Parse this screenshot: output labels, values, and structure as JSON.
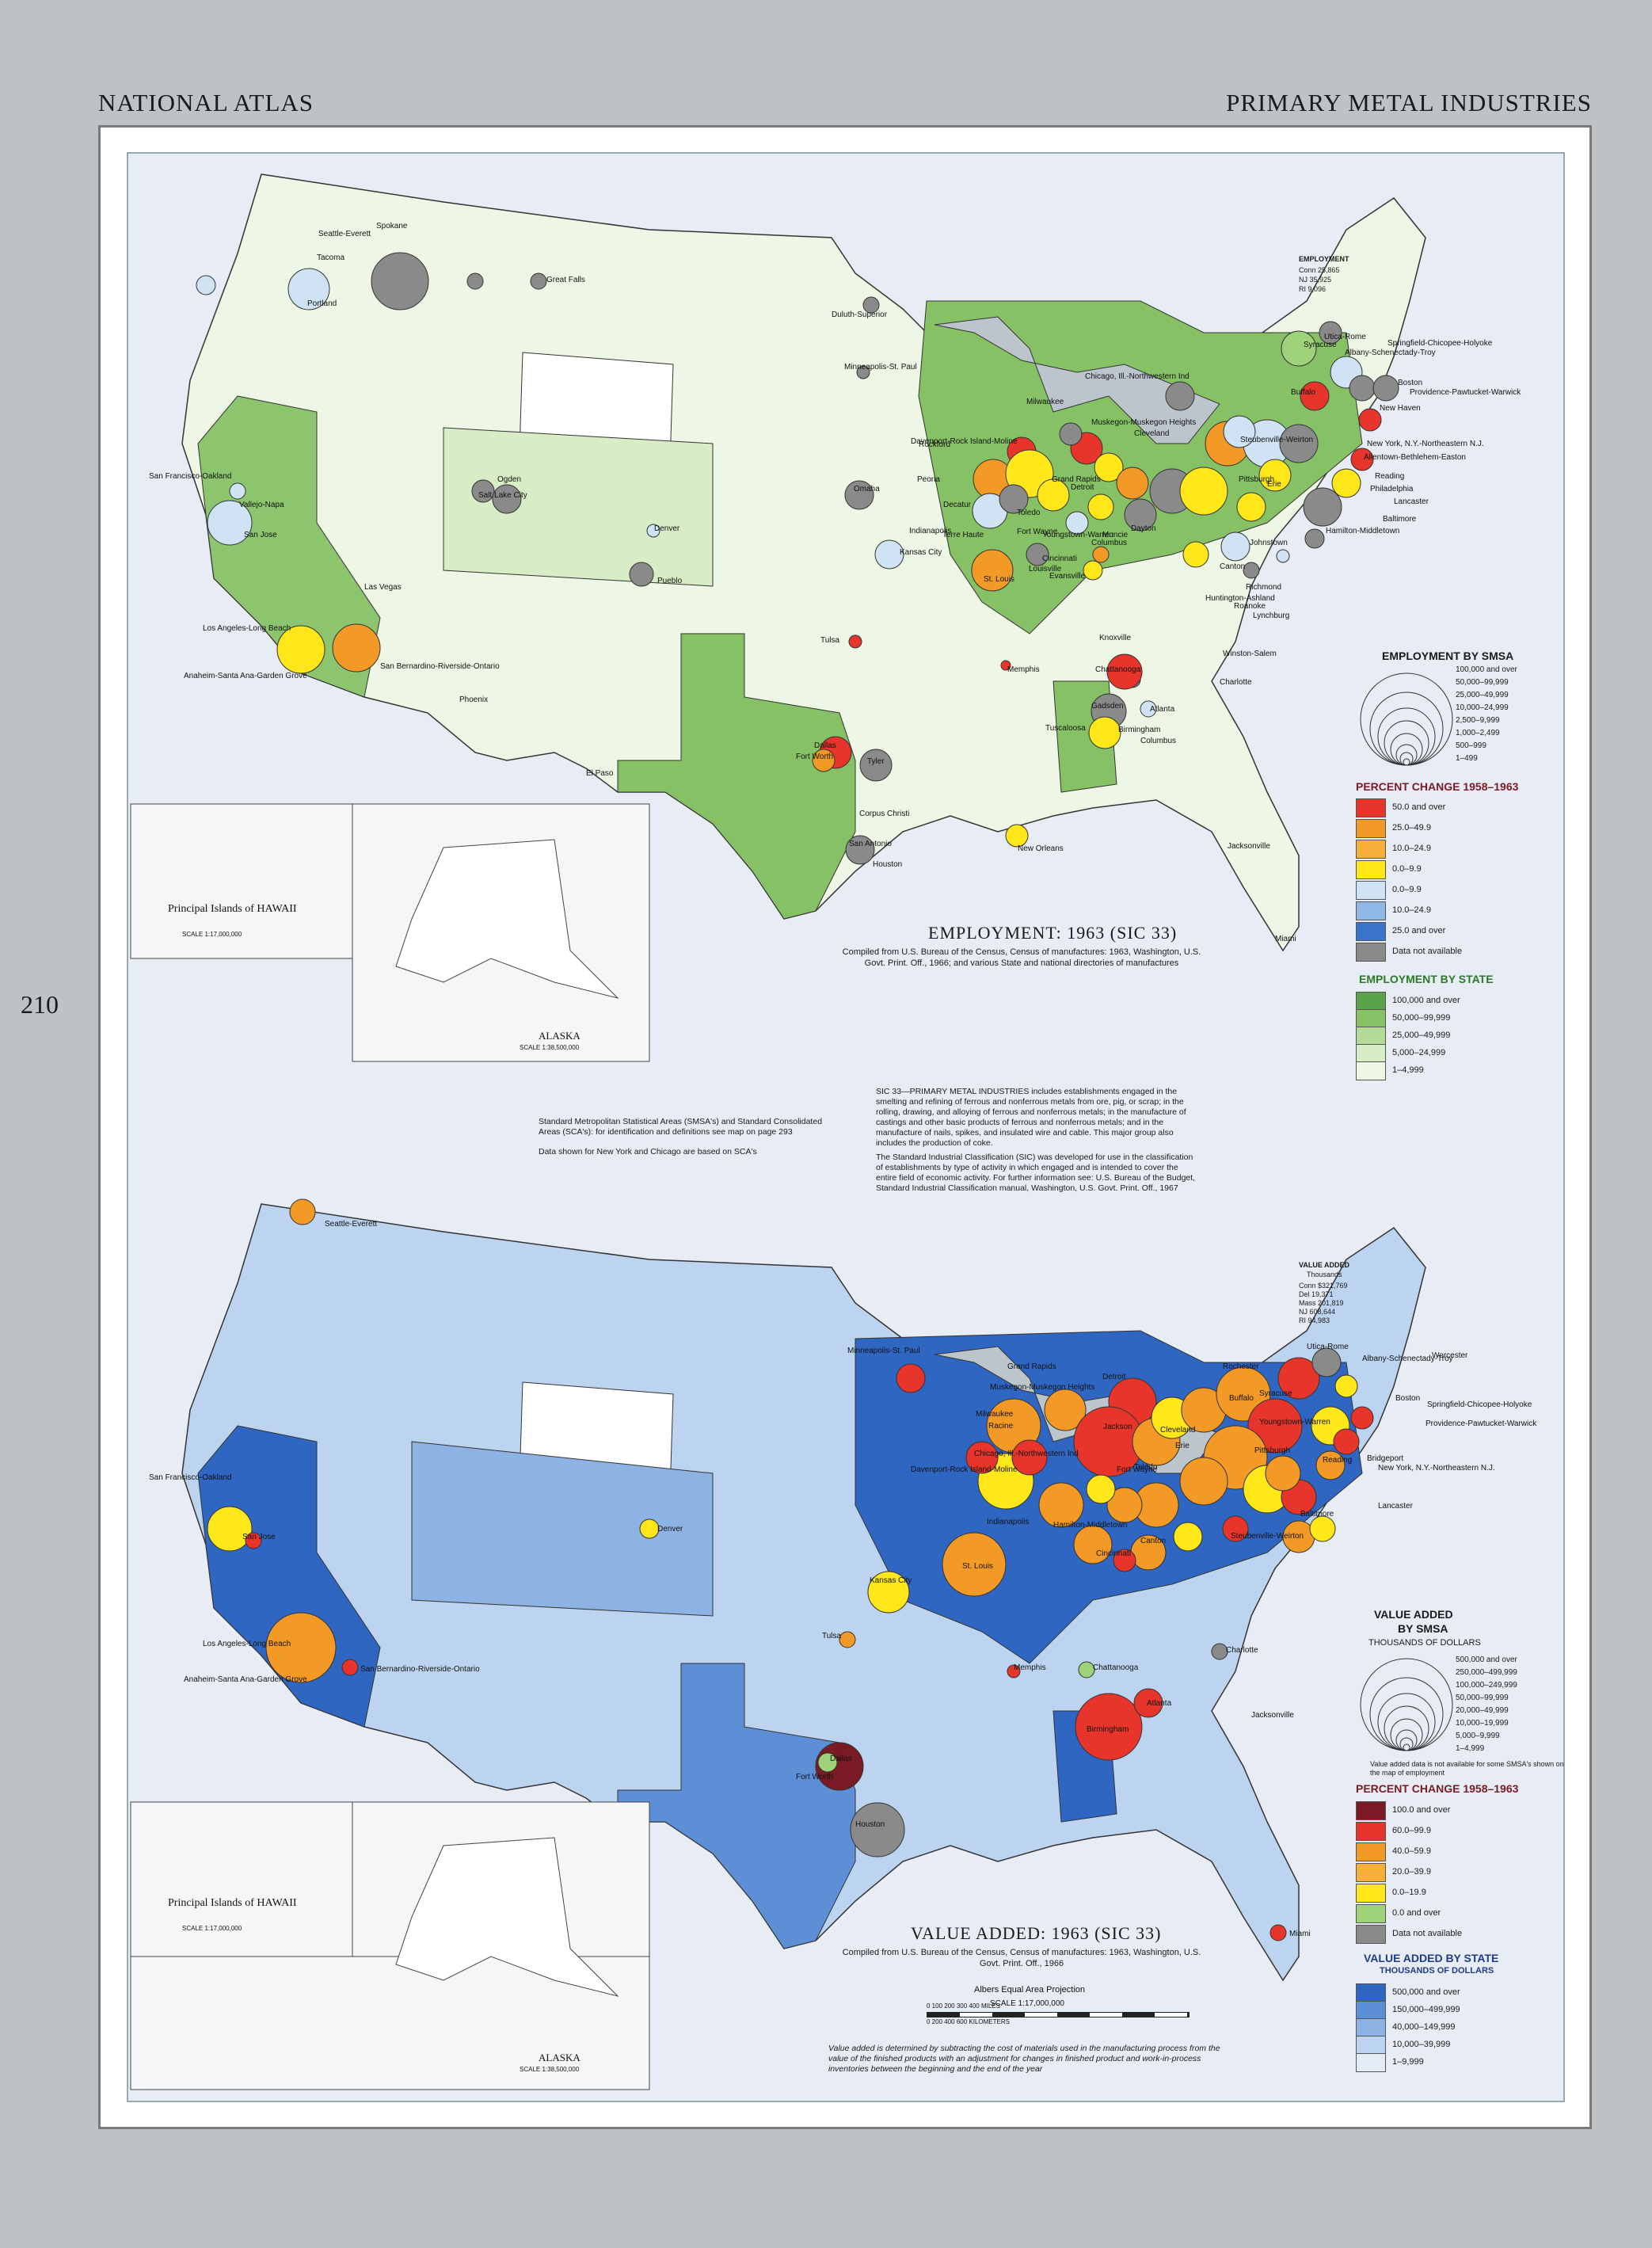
{
  "header": {
    "left": "NATIONAL ATLAS",
    "right": "PRIMARY METAL INDUSTRIES",
    "page_number": "210"
  },
  "colors": {
    "red": "#e8352b",
    "orange": "#f39a26",
    "orange2": "#f6b03a",
    "yellow": "#ffe71a",
    "lblue": "#cfe3f5",
    "mblue": "#8fb8e6",
    "dblue": "#3a74c8",
    "gray": "#8a8a8a",
    "maroon": "#7a1a24",
    "green": "#9fd37a"
  },
  "map1": {
    "title": "EMPLOYMENT: 1963 (SIC 33)",
    "source": "Compiled from U.S. Bureau of the Census, Census of manufactures: 1963, Washington, U.S. Govt. Print. Off., 1966; and various State and national directories of manufactures",
    "employment_box": {
      "title": "EMPLOYMENT",
      "rows": [
        [
          "Conn",
          "25,865"
        ],
        [
          "NJ",
          "35,925"
        ],
        [
          "RI",
          "9,096"
        ]
      ]
    },
    "cities": [
      "Seattle-Everett",
      "Tacoma",
      "Spokane",
      "Portland",
      "Great Falls",
      "Duluth-Superior",
      "Minneapolis-St. Paul",
      "San Francisco-Oakland",
      "Vallejo-Napa",
      "San Jose",
      "Ogden",
      "Salt Lake City",
      "Denver",
      "Pueblo",
      "Omaha",
      "Kansas City",
      "Las Vegas",
      "Los Angeles-Long Beach",
      "San Bernardino-Riverside-Ontario",
      "Anaheim-Santa Ana-Garden Grove",
      "Phoenix",
      "Tulsa",
      "El Paso",
      "Fort Worth",
      "Dallas",
      "Tyler",
      "San Antonio",
      "Houston",
      "Corpus Christi",
      "New Orleans",
      "Memphis",
      "Chattanooga",
      "Knoxville",
      "Gadsden",
      "Birmingham",
      "Tuscaloosa",
      "Atlanta",
      "Columbus",
      "Jacksonville",
      "Miami",
      "Charlotte",
      "Winston-Salem",
      "Lynchburg",
      "Roanoke",
      "Richmond",
      "Huntington-Ashland",
      "St. Louis",
      "Louisville",
      "Evansville",
      "Terre Haute",
      "Indianapolis",
      "Decatur",
      "Peoria",
      "Davenport-Rock Island-Moline",
      "Rockford",
      "Milwaukee",
      "Chicago, Ill.-Northwestern Ind",
      "Muskegon-Muskegon Heights",
      "Grand Rapids",
      "Detroit",
      "Toledo",
      "Fort Wayne",
      "Muncie",
      "Dayton",
      "Columbus",
      "Cleveland",
      "Canton",
      "Pittsburgh",
      "Johnstown",
      "Erie",
      "Buffalo",
      "Syracuse",
      "Utica-Rome",
      "Albany-Schenectady-Troy",
      "Springfield-Chicopee-Holyoke",
      "Boston",
      "Providence-Pawtucket-Warwick",
      "New Haven",
      "New York, N.Y.-Northeastern N.J.",
      "Allentown-Bethlehem-Easton",
      "Reading",
      "Philadelphia",
      "Lancaster",
      "Baltimore",
      "Hamilton-Middletown",
      "Cincinnati",
      "Youngstown-Warren",
      "Steubenville-Weirton"
    ],
    "legend_smsa": {
      "title": "EMPLOYMENT BY SMSA",
      "items": [
        "100,000 and over",
        "50,000–99,999",
        "25,000–49,999",
        "10,000–24,999",
        "2,500–9,999",
        "1,000–2,499",
        "500–999",
        "1–499"
      ]
    },
    "legend_change": {
      "title": "PERCENT CHANGE 1958–1963",
      "items": [
        {
          "color": "#e8352b",
          "label": "50.0 and over"
        },
        {
          "color": "#f39a26",
          "label": "25.0–49.9"
        },
        {
          "color": "#f6b03a",
          "label": "10.0–24.9"
        },
        {
          "color": "#ffe71a",
          "label": "0.0–9.9"
        },
        {
          "color": "#cfe3f5",
          "label": "0.0–9.9"
        },
        {
          "color": "#8fb8e6",
          "label": "10.0–24.9"
        },
        {
          "color": "#3a74c8",
          "label": "25.0 and over"
        },
        {
          "color": "#8a8a8a",
          "label": "Data not available"
        }
      ],
      "plus": "+",
      "minus": "–"
    },
    "legend_state": {
      "title": "EMPLOYMENT BY STATE",
      "items": [
        {
          "color": "#5aa34a",
          "label": "100,000 and over"
        },
        {
          "color": "#86c265",
          "label": "50,000–99,999"
        },
        {
          "color": "#b5db98",
          "label": "25,000–49,999"
        },
        {
          "color": "#d8ecc6",
          "label": "5,000–24,999"
        },
        {
          "color": "#eef7e6",
          "label": "1–4,999"
        }
      ]
    },
    "hawaii": "Principal Islands of HAWAII",
    "hawaii_scale": "SCALE 1:17,000,000",
    "alaska": "ALASKA",
    "alaska_scale": "SCALE 1:38,500,000"
  },
  "notes": {
    "smsa": "Standard Metropolitan Statistical Areas (SMSA's) and Standard Consolidated Areas (SCA's): for identification and definitions see map on page 293",
    "smsa2": "Data shown for New York and Chicago are based on SCA's",
    "sic": "SIC 33—PRIMARY METAL INDUSTRIES includes establishments engaged in the smelting and refining of ferrous and nonferrous metals from ore, pig, or scrap; in the rolling, drawing, and alloying of ferrous and nonferrous metals; in the manufacture of castings and other basic products of ferrous and nonferrous metals; and in the manufacture of nails, spikes, and insulated wire and cable. This major group also includes the production of coke.",
    "sic2": "The Standard Industrial Classification (SIC) was developed for use in the classification of establishments by type of activity in which engaged and is intended to cover the entire field of economic activity. For further information see: U.S. Bureau of the Budget, Standard Industrial Classification manual, Washington, U.S. Govt. Print. Off., 1967"
  },
  "map2": {
    "title": "VALUE ADDED: 1963 (SIC 33)",
    "source": "Compiled from U.S. Bureau of the Census, Census of manufactures: 1963, Washington, U.S. Govt. Print. Off., 1966",
    "value_box": {
      "title": "VALUE ADDED",
      "subtitle": "Thousands",
      "rows": [
        [
          "Conn",
          "$321,769"
        ],
        [
          "Del",
          "19,371"
        ],
        [
          "Mass",
          "201,819"
        ],
        [
          "NJ",
          "608,644"
        ],
        [
          "RI",
          "94,983"
        ]
      ]
    },
    "legend_smsa": {
      "title": "VALUE ADDED",
      "title2": "BY SMSA",
      "title3": "THOUSANDS OF DOLLARS",
      "items": [
        "500,000 and over",
        "250,000–499,999",
        "100,000–249,999",
        "50,000–99,999",
        "20,000–49,999",
        "10,000–19,999",
        "5,000–9,999",
        "1–4,999"
      ],
      "note": "Value added data is not available for some SMSA's shown on the map of employment"
    },
    "legend_change": {
      "title": "PERCENT CHANGE 1958–1963",
      "items": [
        {
          "color": "#7a1a24",
          "label": "100.0 and over"
        },
        {
          "color": "#e8352b",
          "label": "60.0–99.9"
        },
        {
          "color": "#f39a26",
          "label": "40.0–59.9"
        },
        {
          "color": "#f6b03a",
          "label": "20.0–39.9"
        },
        {
          "color": "#ffe71a",
          "label": "0.0–19.9"
        },
        {
          "color": "#9fd37a",
          "label": "0.0 and over"
        },
        {
          "color": "#8a8a8a",
          "label": "Data not available"
        }
      ],
      "plus": "+",
      "minus": "–"
    },
    "legend_state": {
      "title": "VALUE ADDED BY STATE",
      "title2": "THOUSANDS OF DOLLARS",
      "items": [
        {
          "color": "#2f66c2",
          "label": "500,000 and over"
        },
        {
          "color": "#5d8fd6",
          "label": "150,000–499,999"
        },
        {
          "color": "#8db2e4",
          "label": "40,000–149,999"
        },
        {
          "color": "#bcd4f0",
          "label": "10,000–39,999"
        },
        {
          "color": "#e2edf8",
          "label": "1–9,999"
        }
      ]
    },
    "projection": "Albers Equal Area Projection",
    "scale": "SCALE 1:17,000,000",
    "scale_miles": "0    100    200    300    400 MILES",
    "scale_km": "0    200    400    600 KILOMETERS",
    "footnote": "Value added is determined by subtracting the cost of materials used in the manufacturing process from the value of the finished products with an adjustment for changes in finished product and work-in-process inventories between the beginning and the end of the year",
    "hawaii": "Principal Islands of HAWAII",
    "hawaii_scale": "SCALE 1:17,000,000",
    "alaska": "ALASKA",
    "alaska_scale": "SCALE 1:38,500,000",
    "cities": [
      "Seattle-Everett",
      "Minneapolis-St. Paul",
      "San Francisco-Oakland",
      "San Jose",
      "Denver",
      "Kansas City",
      "St. Louis",
      "Tulsa",
      "Los Angeles-Long Beach",
      "San Bernardino-Riverside-Ontario",
      "Anaheim-Santa Ana-Garden Grove",
      "Dallas",
      "Fort Worth",
      "Houston",
      "Memphis",
      "Chattanooga",
      "Birmingham",
      "Atlanta",
      "Charlotte",
      "Jacksonville",
      "Miami",
      "Davenport-Rock Island-Moline",
      "Milwaukee",
      "Racine",
      "Chicago, Ill.-Northwestern Ind",
      "Muskegon-Muskegon Heights",
      "Grand Rapids",
      "Detroit",
      "Jackson",
      "Toledo",
      "Cleveland",
      "Fort Wayne",
      "Indianapolis",
      "Hamilton-Middletown",
      "Cincinnati",
      "Canton",
      "Erie",
      "Buffalo",
      "Rochester",
      "Syracuse",
      "Utica-Rome",
      "Albany-Schenectady-Troy",
      "Worcester",
      "Boston",
      "Springfield-Chicopee-Holyoke",
      "Providence-Pawtucket-Warwick",
      "Youngstown-Warren",
      "Pittsburgh",
      "Bridgeport",
      "New York, N.Y.-Northeastern N.J.",
      "Reading",
      "Baltimore",
      "Lancaster",
      "Steubenville-Weirton"
    ]
  }
}
